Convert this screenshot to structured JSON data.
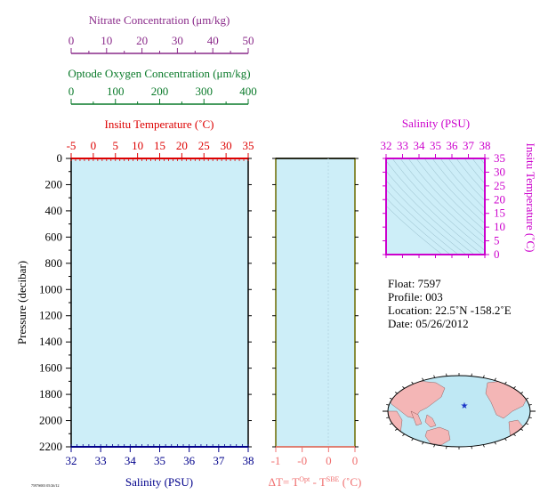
{
  "colors": {
    "plot_bg": "#cdeef8",
    "nitrate": "#8a2a8a",
    "oxygen": "#0a7a2a",
    "temperature": "#dd0000",
    "salinity": "#00008b",
    "delta": "#f07070",
    "ts": "#cc00cc",
    "frame_olive": "#6b6b00",
    "land": "#f4b6b6",
    "ocean": "#bfe8f4",
    "marker": "#1a35c8"
  },
  "nitrate_axis": {
    "label": "Nitrate Concentration (μm/kg)",
    "ticks": [
      "0",
      "10",
      "20",
      "30",
      "40",
      "50"
    ],
    "range": [
      0,
      50
    ]
  },
  "oxygen_axis": {
    "label": "Optode Oxygen Concentration (μm/kg)",
    "ticks": [
      "0",
      "100",
      "200",
      "300",
      "400"
    ],
    "range": [
      0,
      400
    ]
  },
  "temperature_axis": {
    "label": "Insitu Temperature (˚C)",
    "ticks": [
      "-5",
      "0",
      "5",
      "10",
      "15",
      "20",
      "25",
      "30",
      "35"
    ],
    "range": [
      -5,
      35
    ]
  },
  "salinity_axis": {
    "label": "Salinity (PSU)",
    "ticks": [
      "32",
      "33",
      "34",
      "35",
      "36",
      "37",
      "38"
    ],
    "range": [
      32,
      38
    ]
  },
  "pressure_axis": {
    "label": "Pressure (decibar)",
    "ticks": [
      "0",
      "200",
      "400",
      "600",
      "800",
      "1000",
      "1200",
      "1400",
      "1600",
      "1800",
      "2000",
      "2200"
    ],
    "range": [
      0,
      2200
    ]
  },
  "delta_axis": {
    "label_prefix": "ΔT= T",
    "sup1": "Opt",
    "label_mid": " - T",
    "sup2": "SBE",
    "label_suffix": " (˚C)",
    "ticks": [
      "-1",
      "-0",
      "0",
      "0"
    ]
  },
  "ts_plot": {
    "title": "Salinity (PSU)",
    "x_ticks": [
      "32",
      "33",
      "34",
      "35",
      "36",
      "37",
      "38"
    ],
    "y_ticks": [
      "0",
      "5",
      "10",
      "15",
      "20",
      "25",
      "30",
      "35"
    ],
    "y_label": "Insitu Temperature (˚C)"
  },
  "info": {
    "float": "Float:  7597",
    "profile": "Profile:  003",
    "location": "Location:  22.5˚N  -158.2˚E",
    "date": "Date:  05/26/2012"
  },
  "footer_small": "7597S003 05/26/12",
  "chart_data": [
    {
      "type": "line",
      "title": "",
      "xlabel": "Insitu Temperature (˚C)",
      "ylabel": "Pressure (decibar)",
      "xlim": [
        -5,
        35
      ],
      "ylim": [
        2200,
        0
      ],
      "series": []
    },
    {
      "type": "line",
      "xlabel": "Salinity (PSU)",
      "ylabel": "Pressure (decibar)",
      "xlim": [
        32,
        38
      ],
      "ylim": [
        2200,
        0
      ],
      "series": []
    },
    {
      "type": "line",
      "xlabel": "Optode Oxygen Concentration (μm/kg)",
      "xlim": [
        0,
        400
      ],
      "series": []
    },
    {
      "type": "line",
      "xlabel": "Nitrate Concentration (μm/kg)",
      "xlim": [
        0,
        50
      ],
      "series": []
    },
    {
      "type": "scatter",
      "title": "Salinity (PSU)",
      "xlabel": "Salinity (PSU)",
      "ylabel": "Insitu Temperature (˚C)",
      "xlim": [
        32,
        38
      ],
      "ylim": [
        0,
        35
      ],
      "series": []
    }
  ]
}
